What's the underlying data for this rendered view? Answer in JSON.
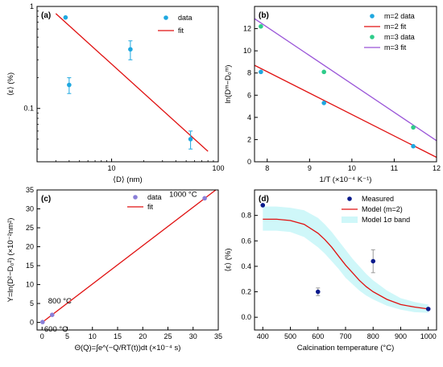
{
  "colors": {
    "data_blue": "#1FA8E0",
    "fit_red": "#E01010",
    "data_green": "#2ECC8A",
    "fit_purple": "#9A55D8",
    "data_violet": "#8A7FD8",
    "measured_navy": "#0A1A8C",
    "band_cyan": "#CFF7F9"
  },
  "chart_data": [
    {
      "id": "a",
      "type": "scatter",
      "panel_label": "(a)",
      "xlabel": "⟨D⟩ (nm)",
      "ylabel": "⟨ε⟩ (%)",
      "xscale": "log",
      "yscale": "log",
      "xlim": [
        2,
        100
      ],
      "ylim": [
        0.03,
        1.0
      ],
      "xticks": [
        {
          "v": 10,
          "label": "10"
        },
        {
          "v": 100,
          "label": "100"
        }
      ],
      "yticks": [
        {
          "v": 0.1,
          "label": "0.1"
        },
        {
          "v": 1,
          "label": "1"
        }
      ],
      "legend_position": "top-right",
      "series": [
        {
          "name": "data",
          "kind": "points",
          "color": "#1FA8E0",
          "x": [
            3.7,
            4.0,
            15,
            55
          ],
          "y": [
            0.78,
            0.17,
            0.38,
            0.05
          ],
          "err": [
            0,
            0.03,
            0.08,
            0.01
          ]
        },
        {
          "name": "fit",
          "kind": "line",
          "color": "#E01010",
          "x": [
            3.0,
            80
          ],
          "y": [
            0.85,
            0.038
          ]
        }
      ]
    },
    {
      "id": "b",
      "type": "scatter",
      "panel_label": "(b)",
      "xlabel": "1/T (×10⁻⁴ K⁻¹)",
      "ylabel": "ln(Dᵐ−D₀ᵐ)",
      "xlim": [
        7.7,
        12
      ],
      "ylim": [
        0,
        14
      ],
      "xticks": [
        {
          "v": 8,
          "label": "8"
        },
        {
          "v": 9,
          "label": "9"
        },
        {
          "v": 10,
          "label": "10"
        },
        {
          "v": 11,
          "label": "11"
        },
        {
          "v": 12,
          "label": "12"
        }
      ],
      "yticks": [
        {
          "v": 0,
          "label": "0"
        },
        {
          "v": 2,
          "label": "2"
        },
        {
          "v": 4,
          "label": "4"
        },
        {
          "v": 6,
          "label": "6"
        },
        {
          "v": 8,
          "label": "8"
        },
        {
          "v": 10,
          "label": "10"
        },
        {
          "v": 12,
          "label": "12"
        }
      ],
      "legend_position": "top-right",
      "series": [
        {
          "name": "m=2 data",
          "kind": "points",
          "color": "#1FA8E0",
          "x": [
            7.85,
            9.34,
            11.45
          ],
          "y": [
            8.1,
            5.3,
            1.4
          ]
        },
        {
          "name": "m=2 fit",
          "kind": "line",
          "color": "#E01010",
          "x": [
            7.7,
            12
          ],
          "y": [
            8.7,
            0.4
          ]
        },
        {
          "name": "m=3 data",
          "kind": "points",
          "color": "#2ECC8A",
          "x": [
            7.85,
            9.34,
            11.45
          ],
          "y": [
            12.2,
            8.1,
            3.1
          ]
        },
        {
          "name": "m=3 fit",
          "kind": "line",
          "color": "#9A55D8",
          "x": [
            7.7,
            12
          ],
          "y": [
            12.9,
            1.9
          ]
        }
      ]
    },
    {
      "id": "c",
      "type": "scatter",
      "panel_label": "(c)",
      "xlabel": "Θ(Q)=∫e^(−Q/RT(t))dt (×10⁻⁴ s)",
      "ylabel": "Y=ln(D²−D₀²) (×10⁻²nm²)",
      "xlim": [
        -1,
        35
      ],
      "ylim": [
        -2,
        35
      ],
      "xticks": [
        {
          "v": 0,
          "label": "0"
        },
        {
          "v": 5,
          "label": "5"
        },
        {
          "v": 10,
          "label": "10"
        },
        {
          "v": 15,
          "label": "15"
        },
        {
          "v": 20,
          "label": "20"
        },
        {
          "v": 25,
          "label": "25"
        },
        {
          "v": 30,
          "label": "30"
        },
        {
          "v": 35,
          "label": "35"
        }
      ],
      "yticks": [
        {
          "v": 0,
          "label": "0"
        },
        {
          "v": 5,
          "label": "5"
        },
        {
          "v": 10,
          "label": "10"
        },
        {
          "v": 15,
          "label": "15"
        },
        {
          "v": 20,
          "label": "20"
        },
        {
          "v": 25,
          "label": "25"
        },
        {
          "v": 30,
          "label": "30"
        },
        {
          "v": 35,
          "label": "35"
        }
      ],
      "legend_position": "top-center",
      "series": [
        {
          "name": "data",
          "kind": "points",
          "color": "#8A7FD8",
          "x": [
            0.1,
            2.0,
            32.3
          ],
          "y": [
            0.1,
            2.0,
            32.8
          ]
        },
        {
          "name": "fit",
          "kind": "line",
          "color": "#E01010",
          "x": [
            0,
            34.5
          ],
          "y": [
            0,
            35
          ]
        }
      ],
      "annotations": [
        {
          "text": "1000 °C",
          "x": 32.3,
          "y": 32.8
        },
        {
          "text": "800 °C",
          "x": 2.0,
          "y": 2.0
        },
        {
          "text": "600 °C",
          "x": 0.1,
          "y": 0.1
        }
      ]
    },
    {
      "id": "d",
      "type": "line",
      "panel_label": "(d)",
      "xlabel": "Calcination temperature (°C)",
      "ylabel": "⟨ε⟩ (%)",
      "xlim": [
        370,
        1030
      ],
      "ylim": [
        -0.1,
        1.0
      ],
      "xticks": [
        {
          "v": 400,
          "label": "400"
        },
        {
          "v": 500,
          "label": "500"
        },
        {
          "v": 600,
          "label": "600"
        },
        {
          "v": 700,
          "label": "700"
        },
        {
          "v": 800,
          "label": "800"
        },
        {
          "v": 900,
          "label": "900"
        },
        {
          "v": 1000,
          "label": "1000"
        }
      ],
      "yticks": [
        {
          "v": 0.0,
          "label": "0.0"
        },
        {
          "v": 0.2,
          "label": "0.2"
        },
        {
          "v": 0.4,
          "label": "0.4"
        },
        {
          "v": 0.6,
          "label": "0.6"
        },
        {
          "v": 0.8,
          "label": "0.8"
        }
      ],
      "legend_position": "top-right",
      "series": [
        {
          "name": "Measured",
          "kind": "points",
          "color": "#0A1A8C",
          "x": [
            400,
            600,
            800,
            1000
          ],
          "y": [
            0.88,
            0.2,
            0.44,
            0.065
          ],
          "err": [
            0,
            0.03,
            0.09,
            0
          ]
        },
        {
          "name": "Model (m=2)",
          "kind": "line",
          "color": "#E01010",
          "x": [
            400,
            450,
            500,
            550,
            600,
            625,
            650,
            675,
            700,
            725,
            750,
            775,
            800,
            850,
            900,
            950,
            1000
          ],
          "y": [
            0.77,
            0.77,
            0.76,
            0.73,
            0.66,
            0.61,
            0.55,
            0.48,
            0.41,
            0.35,
            0.29,
            0.24,
            0.2,
            0.14,
            0.1,
            0.08,
            0.065
          ]
        },
        {
          "name": "Model 1σ band",
          "kind": "band",
          "color": "#CFF7F9",
          "x": [
            400,
            450,
            500,
            550,
            600,
            625,
            650,
            675,
            700,
            725,
            750,
            775,
            800,
            850,
            900,
            950,
            1000
          ],
          "upper": [
            0.87,
            0.87,
            0.86,
            0.84,
            0.78,
            0.73,
            0.67,
            0.6,
            0.53,
            0.46,
            0.4,
            0.34,
            0.29,
            0.21,
            0.15,
            0.12,
            0.1
          ],
          "lower": [
            0.68,
            0.68,
            0.67,
            0.63,
            0.55,
            0.5,
            0.44,
            0.38,
            0.31,
            0.26,
            0.21,
            0.17,
            0.14,
            0.09,
            0.06,
            0.04,
            0.035
          ]
        }
      ]
    }
  ]
}
